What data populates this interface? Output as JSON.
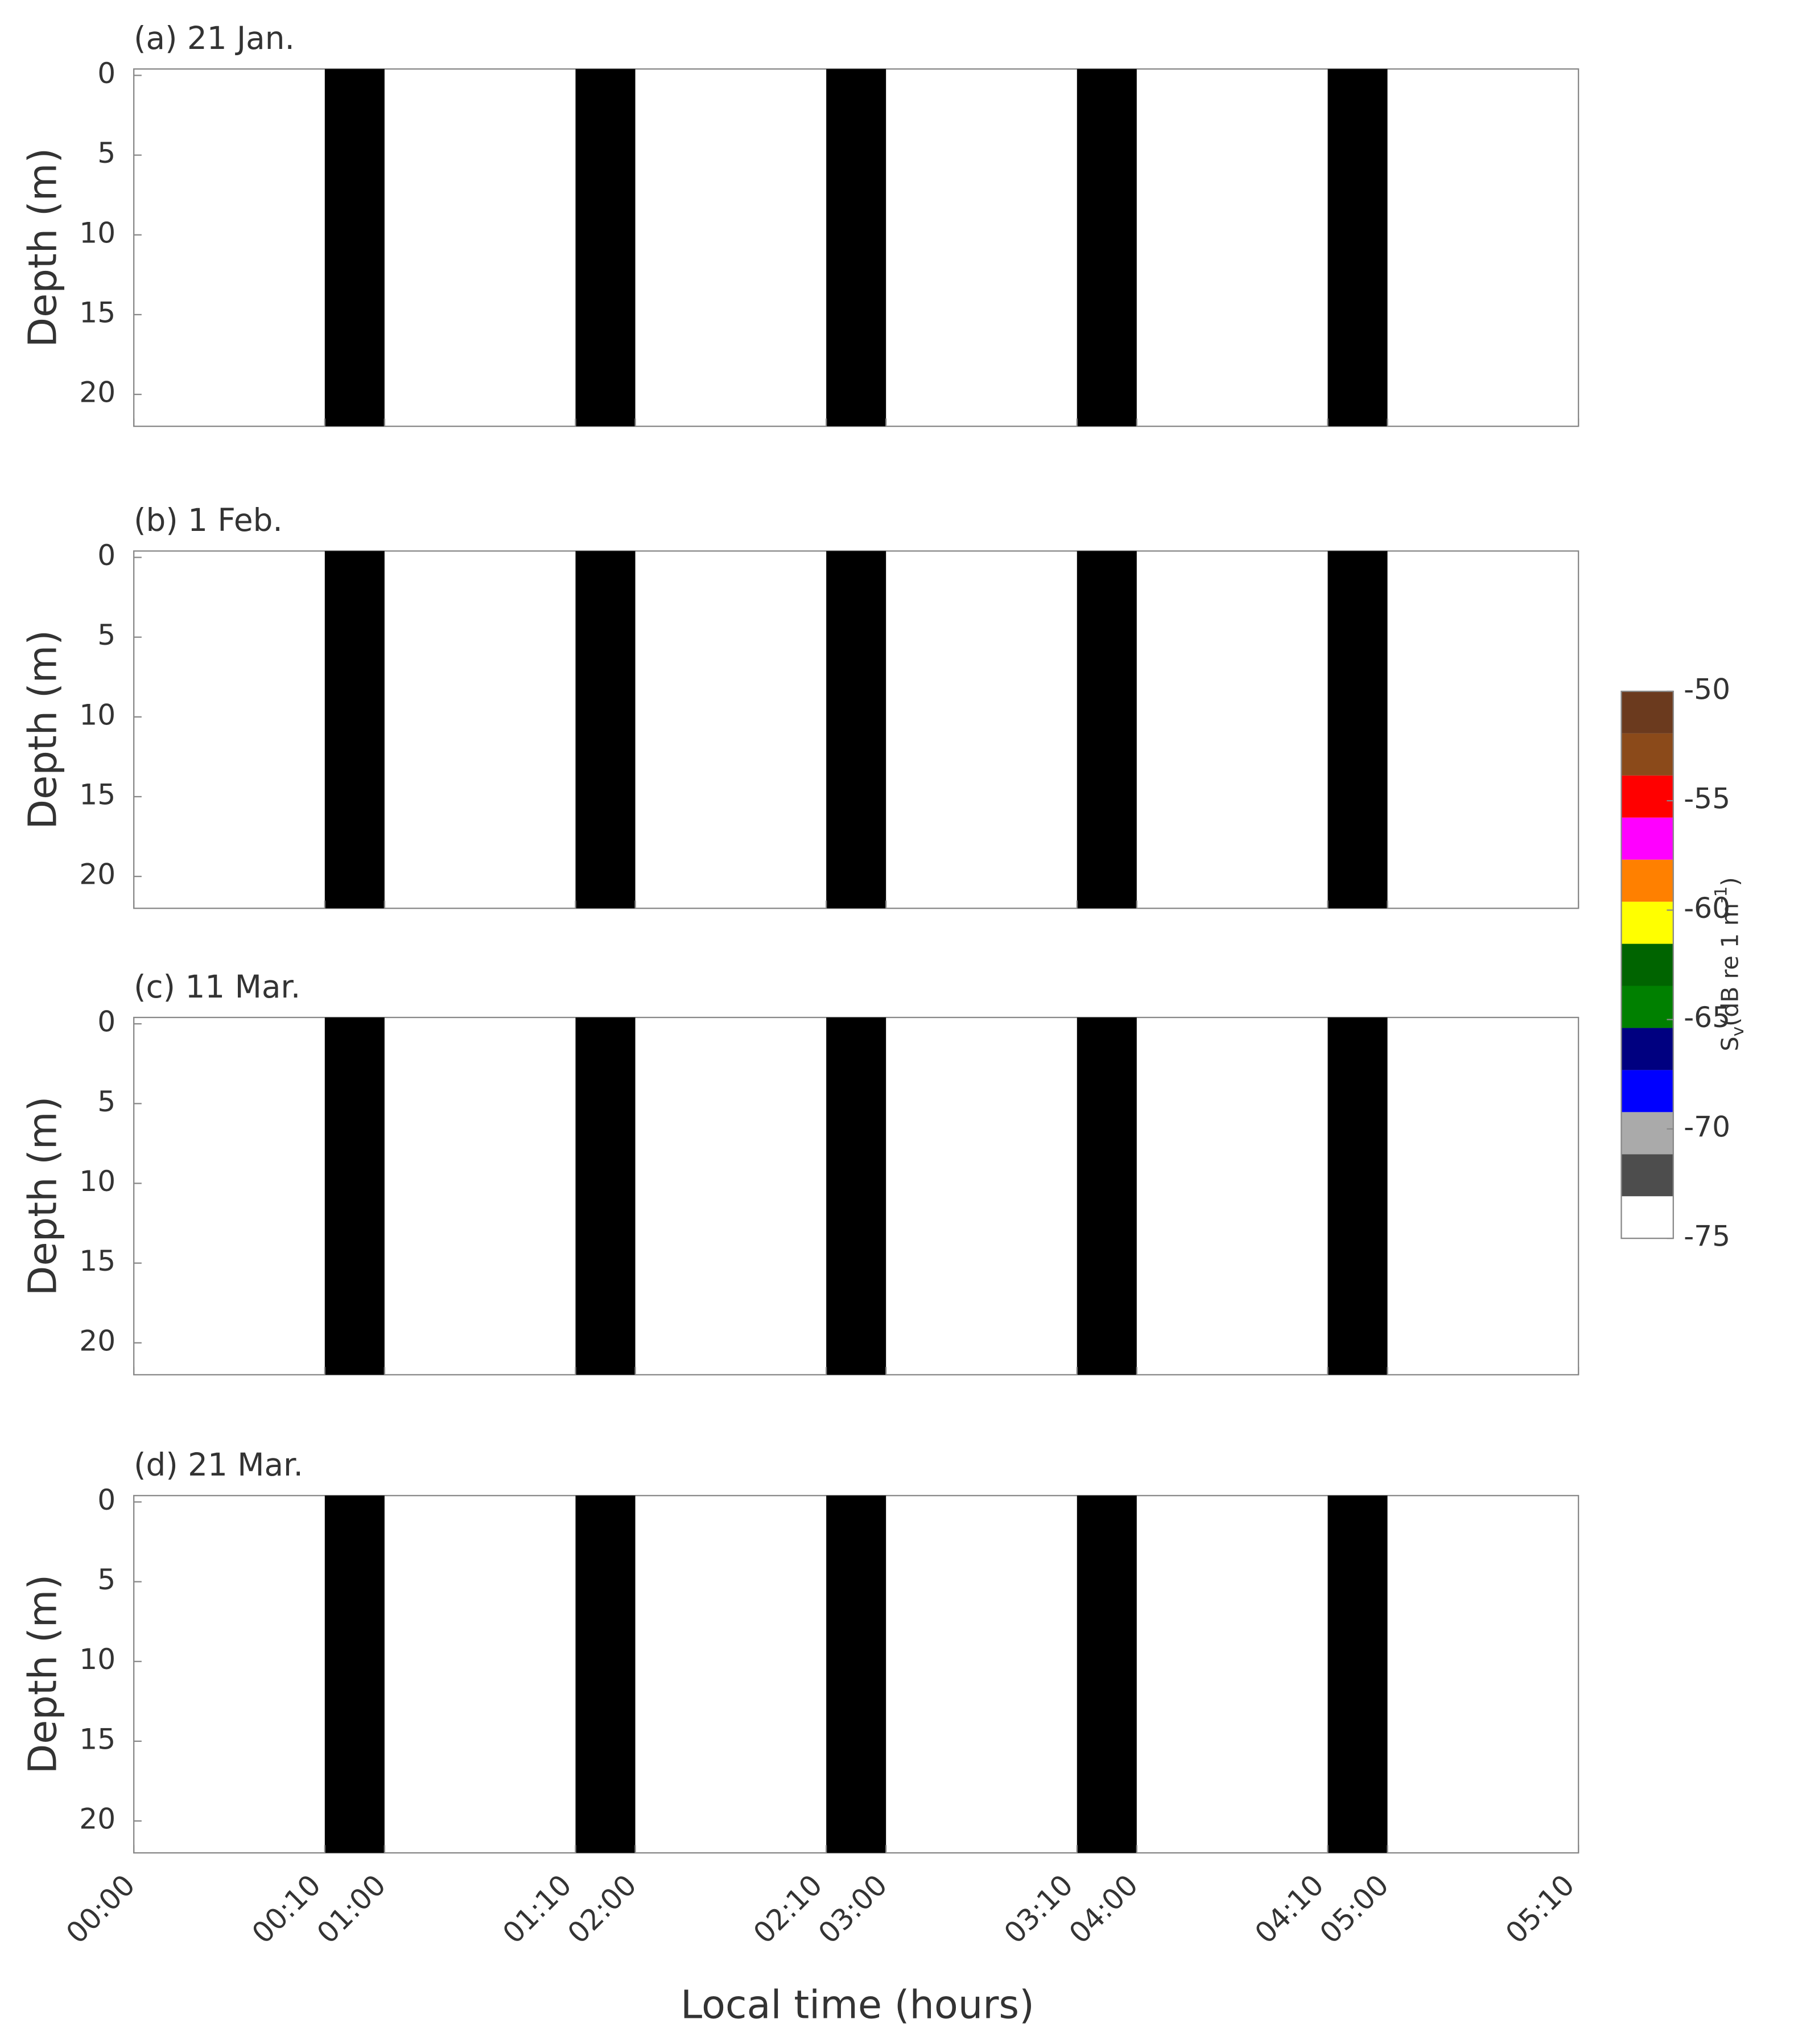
{
  "chart_data": {
    "type": "echogram",
    "xlabel": "Local time (hours)",
    "segments": [
      [
        "00:00",
        "00:10"
      ],
      [
        "01:00",
        "01:10"
      ],
      [
        "02:00",
        "02:10"
      ],
      [
        "03:00",
        "03:10"
      ],
      [
        "04:00",
        "04:10"
      ],
      [
        "05:00",
        "05:10"
      ]
    ],
    "gap_color": "#000000",
    "panels": [
      {
        "title": "(a) 21 Jan.",
        "ylabel": "Depth (m)",
        "ylim": [
          22,
          -0.4
        ],
        "yticks": [
          0,
          5,
          10,
          15,
          20
        ]
      },
      {
        "title": "(b) 1 Feb.",
        "ylabel": "Depth (m)",
        "ylim": [
          22,
          -0.4
        ],
        "yticks": [
          0,
          5,
          10,
          15,
          20
        ]
      },
      {
        "title": "(c) 11 Mar.",
        "ylabel": "Depth (m)",
        "ylim": [
          22,
          -0.4
        ],
        "yticks": [
          0,
          5,
          10,
          15,
          20
        ]
      },
      {
        "title": "(d) 21 Mar.",
        "ylabel": "Depth (m)",
        "ylim": [
          22,
          -0.4
        ],
        "yticks": [
          0,
          5,
          10,
          15,
          20
        ]
      }
    ],
    "colorbar": {
      "label_main": "S",
      "label_sub": "v",
      "label_mid": "(dB re 1 m",
      "label_sup": "-1",
      "label_end": ")",
      "clim": [
        -75,
        -50
      ],
      "ticks": [
        -50,
        -55,
        -60,
        -65,
        -70,
        -75
      ],
      "colors": [
        "#ffffff",
        "#4d4d4d",
        "#aaaaaa",
        "#0000ff",
        "#000080",
        "#008000",
        "#006400",
        "#ffff00",
        "#ff8000",
        "#ff00ff",
        "#ff0000",
        "#8b4a1a",
        "#6b3a1e"
      ]
    }
  }
}
